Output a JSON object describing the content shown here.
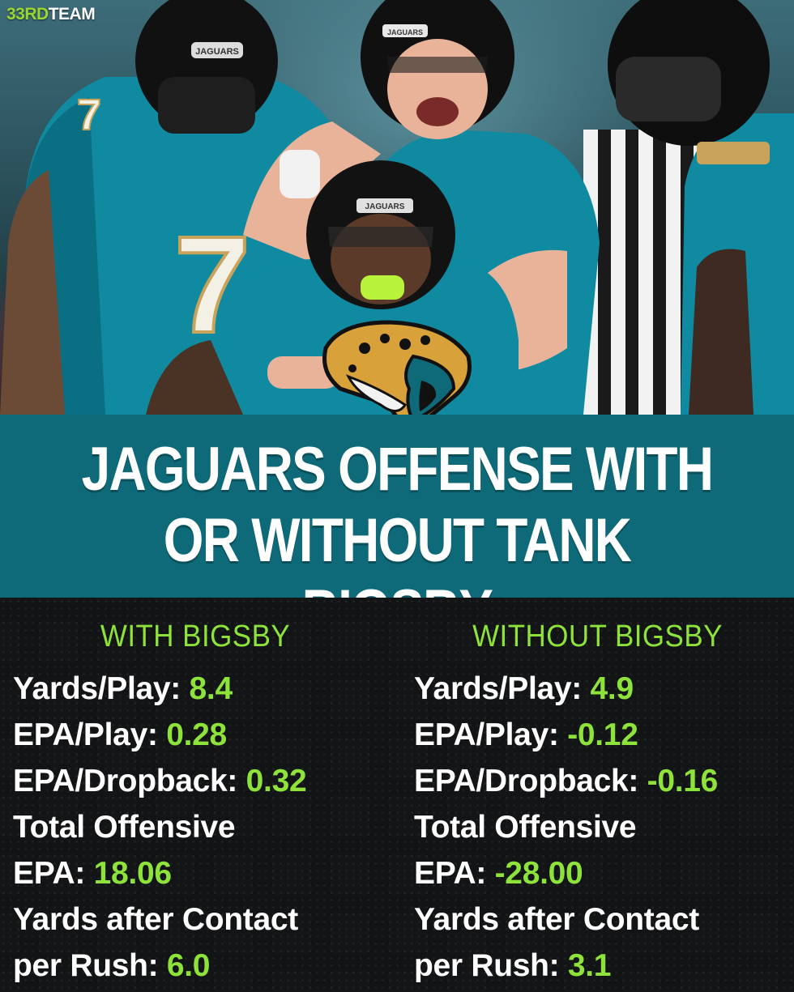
{
  "brand": {
    "prefix": "33RD",
    "suffix": "TEAM"
  },
  "title": {
    "line1": "JAGUARS OFFENSE WITH",
    "line2": "OR WITHOUT TANK BIGSBY"
  },
  "colors": {
    "accent": "#8ee33b",
    "teal": "#0e6a78",
    "background": "#121415"
  },
  "with": {
    "heading": "WITH BIGSBY",
    "stats": [
      {
        "label": "Yards/Play: ",
        "value": "8.4"
      },
      {
        "label": "EPA/Play: ",
        "value": "0.28"
      },
      {
        "label": "EPA/Dropback: ",
        "value": "0.32"
      },
      {
        "label": "Total Offensive",
        "value": ""
      },
      {
        "label": "EPA: ",
        "value": "18.06"
      },
      {
        "label": "Yards after Contact",
        "value": ""
      },
      {
        "label": "per Rush: ",
        "value": "6.0"
      }
    ]
  },
  "without": {
    "heading": "WITHOUT BIGSBY",
    "stats": [
      {
        "label": "Yards/Play: ",
        "value": "4.9"
      },
      {
        "label": "EPA/Play: ",
        "value": "-0.12"
      },
      {
        "label": "EPA/Dropback: ",
        "value": "-0.16"
      },
      {
        "label": "Total Offensive",
        "value": ""
      },
      {
        "label": "EPA: ",
        "value": "-28.00"
      },
      {
        "label": "Yards after Contact",
        "value": ""
      },
      {
        "label": "per Rush: ",
        "value": "3.1"
      }
    ]
  },
  "photo": {
    "helmet_text": "JAGUARS",
    "jersey_number": "7"
  }
}
